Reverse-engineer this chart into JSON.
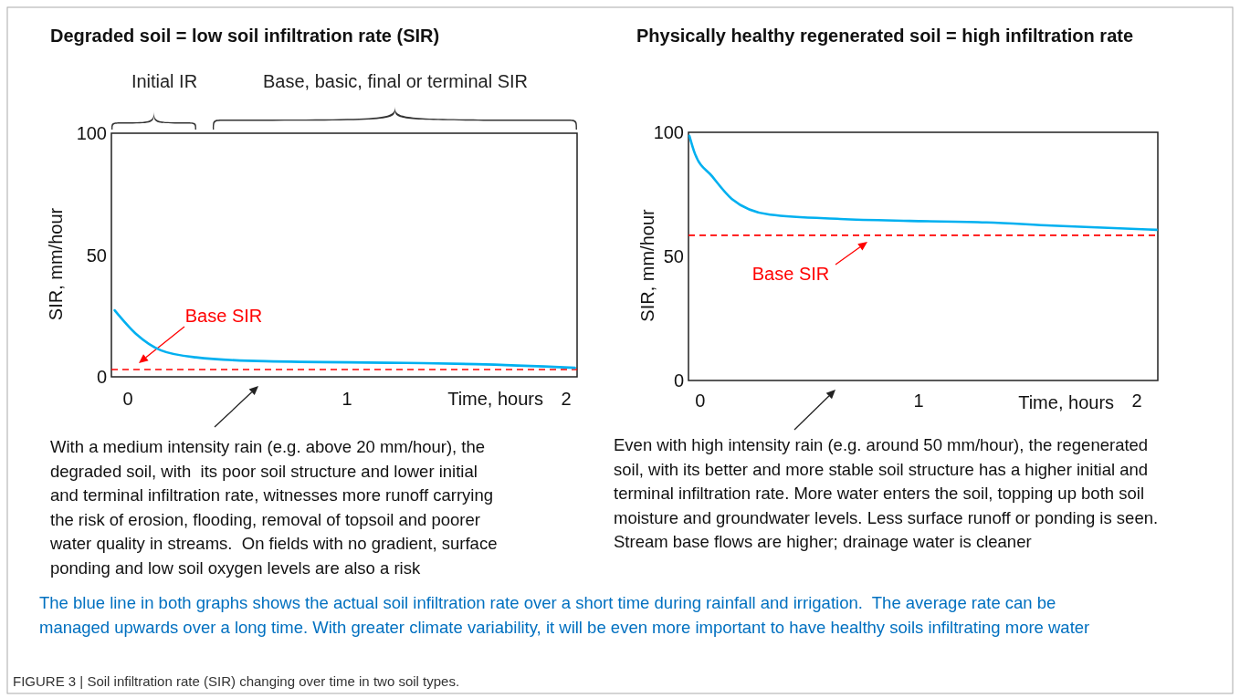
{
  "chart_data": [
    {
      "type": "line",
      "title": "Degraded soil = low soil infiltration rate (SIR)",
      "xlabel": "Time, hours",
      "ylabel": "SIR, mm/hour",
      "xlim": [
        -0.075,
        2.05
      ],
      "ylim": [
        0,
        100
      ],
      "xticks": [
        0,
        1,
        2
      ],
      "yticks": [
        0,
        50,
        100
      ],
      "marker": "none",
      "line_style": "solid",
      "series": [
        {
          "color": "#00b0f0",
          "x": [
            -0.06,
            0.04,
            0.15,
            0.31,
            0.63,
            1.27,
            1.59,
            2.04
          ],
          "values": [
            27.3,
            17.4,
            10.9,
            8.0,
            6.4,
            5.7,
            5.2,
            3.7
          ]
        }
      ],
      "ref_lines": [
        {
          "axis": "y",
          "value": 3,
          "label": "Base SIR",
          "color": "#ff0000",
          "line_style": "dashed"
        }
      ],
      "annotations": [
        "Initial IR",
        "Base, basic, final or terminal SIR",
        "With a medium intensity rain (e.g. above 20 mm/hour), the\ndegraded soil, with  its poor soil structure and lower initial\nand terminal infiltration rate, witnesses more runoff carrying\nthe risk of erosion, flooding, removal of topsoil and poorer\nwater quality in streams.  On fields with no gradient, surface\nponding and low soil oxygen levels are also a risk"
      ]
    },
    {
      "type": "line",
      "title": "Physically healthy regenerated soil = high infiltration rate",
      "xlabel": "Time, hours",
      "ylabel": "SIR, mm/hour",
      "xlim": [
        -0.054,
        2.096
      ],
      "ylim": [
        0,
        100
      ],
      "xticks": [
        0,
        1,
        2
      ],
      "yticks": [
        0,
        50,
        100
      ],
      "marker": "none",
      "line_style": "solid",
      "series": [
        {
          "color": "#00b0f0",
          "x": [
            -0.05,
            -0.025,
            0.054,
            0.144,
            0.32,
            0.64,
            0.96,
            1.31,
            1.61,
            2.09
          ],
          "values": [
            98.6,
            91.5,
            82.3,
            73.2,
            66.8,
            65.1,
            64.3,
            63.7,
            62.4,
            60.7
          ]
        }
      ],
      "ref_lines": [
        {
          "axis": "y",
          "value": 58.5,
          "label": "Base SIR",
          "color": "#ff0000",
          "line_style": "dashed"
        }
      ],
      "annotations": [
        "Even with high intensity rain (e.g. around 50 mm/hour), the regenerated\nsoil, with its better and more stable soil structure has a higher initial and\nterminal infiltration rate. More water enters the soil, topping up both soil\nmoisture and groundwater levels. Less surface runoff or ponding is seen.\nStream base flows are higher; drainage water is cleaner",
        "The blue line in both graphs shows the actual soil infiltration rate over a short time during rainfall and irrigation.  The average rate can be\nmanaged upwards over a long time. With greater climate variability, it will be even more important to have healthy soils infiltrating more water",
        "FIGURE 3 | Soil infiltration rate (SIR) changing over time in two soil types."
      ]
    }
  ]
}
